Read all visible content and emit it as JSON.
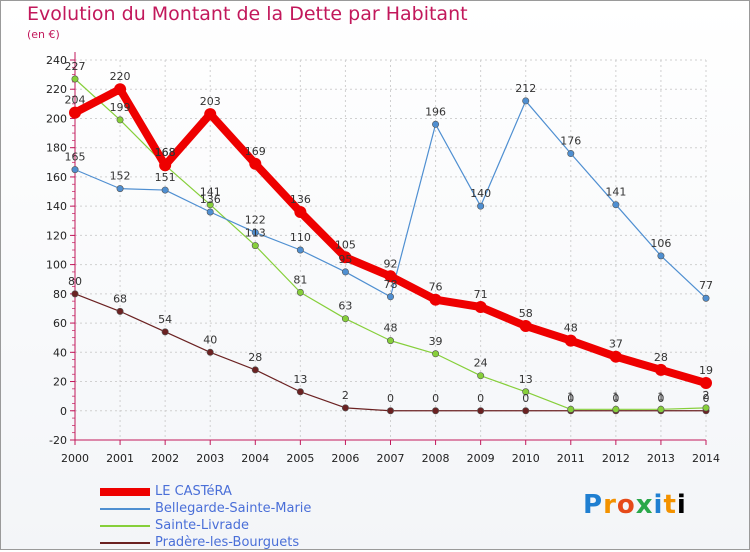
{
  "chart_data": {
    "type": "line",
    "title": "Evolution du Montant de la Dette par Habitant",
    "subtitle": "(en €)",
    "x": [
      "2000",
      "2001",
      "2002",
      "2003",
      "2004",
      "2005",
      "2006",
      "2007",
      "2008",
      "2009",
      "2010",
      "2011",
      "2012",
      "2013",
      "2014"
    ],
    "ylim": [
      -20,
      240
    ],
    "yticks": [
      -20,
      0,
      20,
      40,
      60,
      80,
      100,
      120,
      140,
      160,
      180,
      200,
      220,
      240
    ],
    "legend_position": "bottom-left",
    "series": [
      {
        "name": "LE CASTéRA",
        "color": "#ee0000",
        "values": [
          204,
          220,
          168,
          203,
          169,
          136,
          105,
          92,
          76,
          71,
          58,
          48,
          37,
          28,
          19
        ]
      },
      {
        "name": "Bellegarde-Sainte-Marie",
        "color": "#4f8fd1",
        "values": [
          165,
          152,
          151,
          136,
          122,
          110,
          95,
          78,
          196,
          140,
          212,
          176,
          141,
          106,
          77
        ]
      },
      {
        "name": "Sainte-Livrade",
        "color": "#86cf3a",
        "values": [
          227,
          199,
          168,
          141,
          113,
          81,
          63,
          48,
          39,
          24,
          13,
          1,
          1,
          1,
          2
        ]
      },
      {
        "name": "Pradère-les-Bourguets",
        "color": "#6b2222",
        "values": [
          80,
          68,
          54,
          40,
          28,
          13,
          2,
          0,
          0,
          0,
          0,
          0,
          0,
          0,
          0
        ]
      }
    ],
    "data_labels": [
      [
        "204",
        "220",
        "168",
        "203",
        "169",
        "136",
        "105",
        "92",
        "76",
        "71",
        "58",
        "48",
        "37",
        "28",
        "19"
      ],
      [
        "165",
        "152",
        "151",
        "136",
        "122",
        "110",
        "95",
        "78",
        "196",
        "140",
        "212",
        "176",
        "141",
        "106",
        "77"
      ],
      [
        "227",
        "199",
        "168",
        "141",
        "113",
        "81",
        "63",
        "48",
        "39",
        "24",
        "13",
        "1",
        "1",
        "1",
        "2"
      ],
      [
        "80",
        "68",
        "54",
        "40",
        "28",
        "13",
        "2",
        "0",
        "0",
        "0",
        "0",
        "0",
        "0",
        "0",
        "0"
      ]
    ]
  },
  "logo": {
    "letters": [
      "P",
      "r",
      "o",
      "x",
      "i",
      "t",
      "i"
    ]
  }
}
